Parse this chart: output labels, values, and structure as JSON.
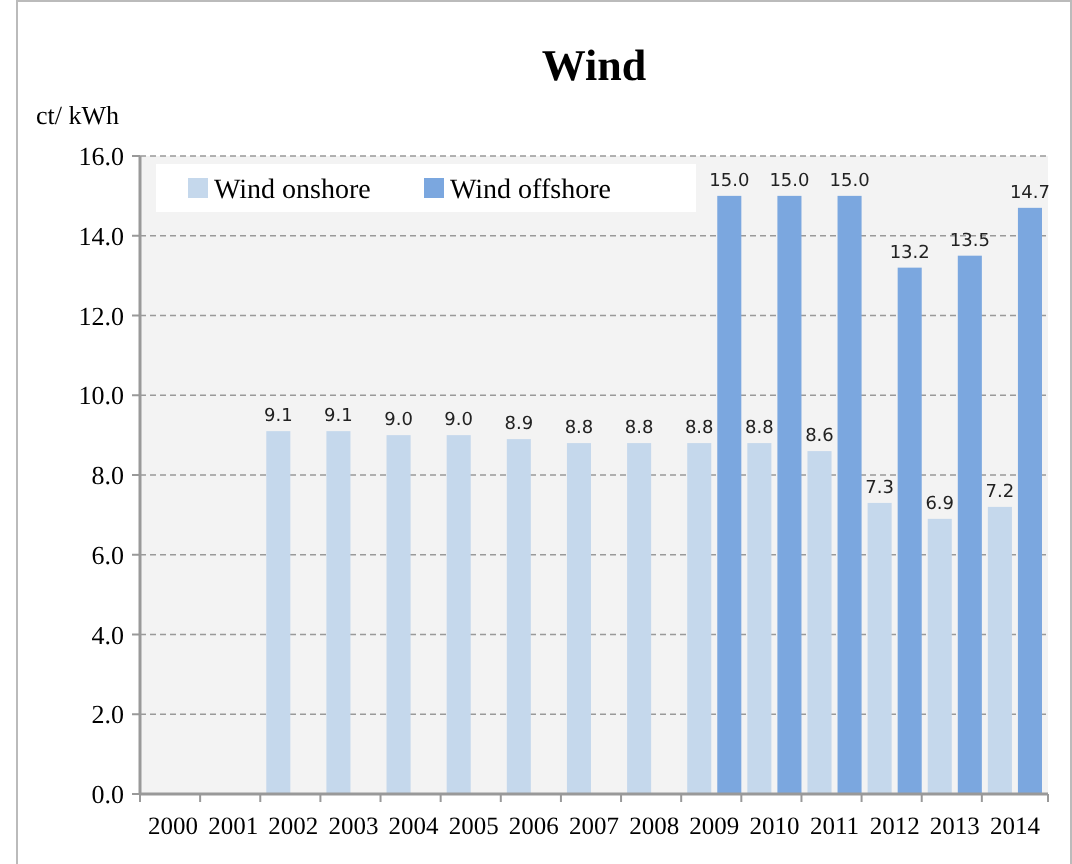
{
  "chart_data": {
    "type": "bar",
    "title": "Wind",
    "ylabel": "ct/ kWh",
    "categories": [
      "2000",
      "2001",
      "2002",
      "2003",
      "2004",
      "2005",
      "2006",
      "2007",
      "2008",
      "2009",
      "2010",
      "2011",
      "2012",
      "2013",
      "2014"
    ],
    "series": [
      {
        "name": "Wind onshore",
        "color": "#c5d8ec",
        "values": [
          null,
          null,
          9.1,
          9.1,
          9.0,
          9.0,
          8.9,
          8.8,
          8.8,
          8.8,
          8.8,
          8.6,
          7.3,
          6.9,
          7.2
        ],
        "value_labels": [
          null,
          null,
          "9.1",
          "9.1",
          "9.0",
          "9.0",
          "8.9",
          "8.8",
          "8.8",
          "8.8",
          "8.8",
          "8.6",
          "7.3",
          "6.9",
          "7.2"
        ]
      },
      {
        "name": "Wind offshore",
        "color": "#7ba7df",
        "values": [
          null,
          null,
          null,
          null,
          null,
          null,
          null,
          null,
          null,
          15.0,
          15.0,
          15.0,
          13.2,
          13.5,
          14.7
        ],
        "value_labels": [
          null,
          null,
          null,
          null,
          null,
          null,
          null,
          null,
          null,
          "15.0",
          "15.0",
          "15.0",
          "13.2",
          "13.5",
          "14.7"
        ]
      }
    ],
    "ylim": [
      0,
      16
    ],
    "yticks": [
      {
        "value": 0,
        "label": "0.0"
      },
      {
        "value": 2,
        "label": "2.0"
      },
      {
        "value": 4,
        "label": "4.0"
      },
      {
        "value": 6,
        "label": "6.0"
      },
      {
        "value": 8,
        "label": "8.0"
      },
      {
        "value": 10,
        "label": "10.0"
      },
      {
        "value": 12,
        "label": "12.0"
      },
      {
        "value": 14,
        "label": "14.0"
      },
      {
        "value": 16,
        "label": "16.0"
      }
    ],
    "grid": "y",
    "legend": "top left"
  }
}
